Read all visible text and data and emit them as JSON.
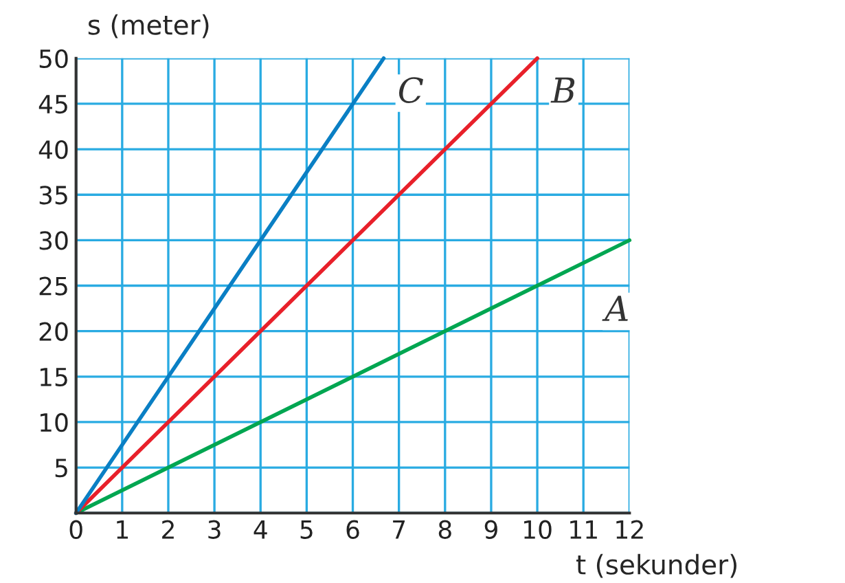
{
  "chart_data": {
    "type": "line",
    "xlabel": "t (sekunder)",
    "ylabel": "s (meter)",
    "series": [
      {
        "name": "A",
        "color": "#00a651",
        "x": [
          0,
          12
        ],
        "values": [
          0,
          30
        ]
      },
      {
        "name": "B",
        "color": "#e8202a",
        "x": [
          0,
          10
        ],
        "values": [
          0,
          50
        ]
      },
      {
        "name": "C",
        "color": "#0a7fc4",
        "x": [
          0,
          6.67
        ],
        "values": [
          0,
          50
        ]
      }
    ],
    "xlim": [
      0,
      12
    ],
    "ylim": [
      0,
      50
    ],
    "xticks": [
      0,
      1,
      2,
      3,
      4,
      5,
      6,
      7,
      8,
      9,
      10,
      11,
      12
    ],
    "yticks": [
      {
        "value": 0,
        "label": null
      },
      5,
      10,
      15,
      20,
      25,
      30,
      35,
      40,
      45,
      50
    ],
    "grid": true,
    "legend": false,
    "marker": "none",
    "line_style": "solid"
  }
}
